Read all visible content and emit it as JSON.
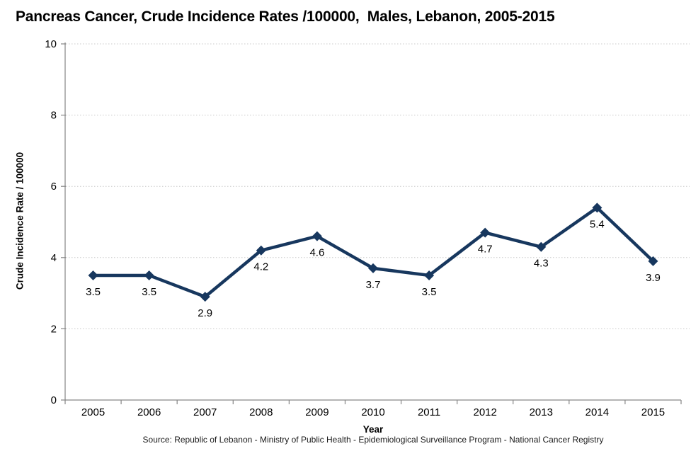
{
  "page": {
    "title": "Pancreas Cancer, Crude Incidence Rates /100000,  Males, Lebanon, 2005-2015"
  },
  "chart_data": {
    "type": "line",
    "title": "Pancreas Cancer, Crude Incidence Rates /100000,  Males, Lebanon, 2005-2015",
    "categories": [
      "2005",
      "2006",
      "2007",
      "2008",
      "2009",
      "2010",
      "2011",
      "2012",
      "2013",
      "2014",
      "2015"
    ],
    "series": [
      {
        "name": "Crude Incidence Rate /100000",
        "values": [
          3.5,
          3.5,
          2.9,
          4.2,
          4.6,
          3.7,
          3.5,
          4.7,
          4.3,
          5.4,
          3.9
        ]
      }
    ],
    "xlabel": "Year",
    "ylabel": "Crude Incidence Rate / 100000",
    "ylim": [
      0,
      10
    ],
    "ytick_step": 2,
    "grid": "horizontal-dotted",
    "legend": "none",
    "marker": "diamond",
    "data_labels": "below-points",
    "source": "Source: Republic of Lebanon - Ministry of Public Health - Epidemiological Surveillance Program - National Cancer Registry",
    "colors": {
      "line": "#17375E",
      "marker": "#17375E",
      "axis": "#868686",
      "gridline": "#C8C8C8",
      "text": "#000000",
      "background": "#FFFFFF"
    }
  }
}
